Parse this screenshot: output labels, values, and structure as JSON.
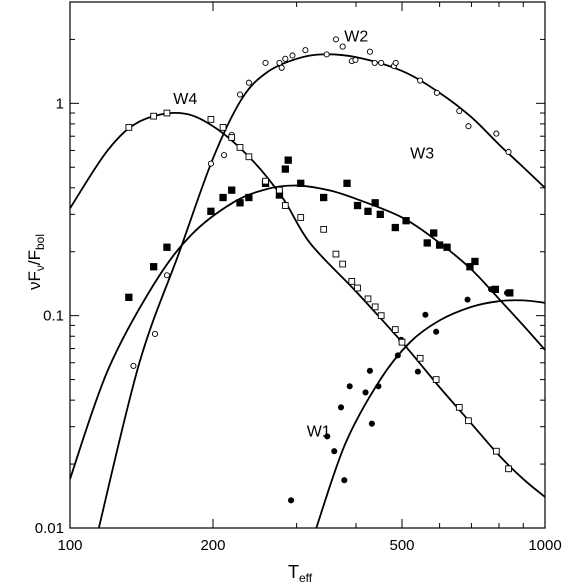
{
  "chart_data": {
    "type": "scatter",
    "title": "",
    "xlabel": {
      "main": "T",
      "sub": "eff"
    },
    "ylabel": {
      "pre": "ν",
      "f1": "F",
      "f1_sub": "ν",
      "slash": "/",
      "f2": "F",
      "f2_sub": "bol"
    },
    "x_scale": "log",
    "y_scale": "log",
    "xlim": [
      100,
      1000
    ],
    "ylim": [
      0.01,
      3
    ],
    "x_ticks": [
      {
        "value": 100,
        "label": "100"
      },
      {
        "value": 200,
        "label": "200"
      },
      {
        "value": 500,
        "label": "500"
      },
      {
        "value": 1000,
        "label": "1000"
      }
    ],
    "y_ticks": [
      {
        "value": 0.01,
        "label": "0.01"
      },
      {
        "value": 0.1,
        "label": "0.1"
      },
      {
        "value": 1,
        "label": "1"
      }
    ],
    "grid": false,
    "legend": "none",
    "series": [
      {
        "name": "W1",
        "label_at": [
          315,
          0.027
        ],
        "marker": "filled-circle",
        "points": [
          [
            292,
            0.0135
          ],
          [
            348,
            0.027
          ],
          [
            360,
            0.023
          ],
          [
            372,
            0.037
          ],
          [
            378,
            0.0168
          ],
          [
            388,
            0.0465
          ],
          [
            419,
            0.0435
          ],
          [
            428,
            0.055
          ],
          [
            432,
            0.031
          ],
          [
            446,
            0.0465
          ],
          [
            490,
            0.065
          ],
          [
            498,
            0.077
          ],
          [
            540,
            0.0545
          ],
          [
            560,
            0.101
          ],
          [
            590,
            0.084
          ],
          [
            687,
            0.119
          ],
          [
            770,
            0.133
          ],
          [
            832,
            0.128
          ]
        ],
        "curve": [
          [
            330,
            0.01
          ],
          [
            380,
            0.025
          ],
          [
            450,
            0.05
          ],
          [
            520,
            0.075
          ],
          [
            600,
            0.095
          ],
          [
            700,
            0.11
          ],
          [
            800,
            0.117
          ],
          [
            900,
            0.118
          ],
          [
            1000,
            0.115
          ]
        ]
      },
      {
        "name": "W2",
        "label_at": [
          378,
          1.95
        ],
        "marker": "open-circle",
        "points": [
          [
            136,
            0.058
          ],
          [
            151,
            0.082
          ],
          [
            160,
            0.155
          ],
          [
            198,
            0.52
          ],
          [
            211,
            0.57
          ],
          [
            219,
            0.71
          ],
          [
            228,
            1.1
          ],
          [
            238,
            1.25
          ],
          [
            258,
            1.55
          ],
          [
            276,
            1.55
          ],
          [
            279,
            1.47
          ],
          [
            284,
            1.62
          ],
          [
            294,
            1.68
          ],
          [
            313,
            1.78
          ],
          [
            347,
            1.7
          ],
          [
            363,
            2.0
          ],
          [
            375,
            1.85
          ],
          [
            392,
            1.58
          ],
          [
            399,
            1.6
          ],
          [
            428,
            1.75
          ],
          [
            438,
            1.55
          ],
          [
            452,
            1.55
          ],
          [
            481,
            1.5
          ],
          [
            485,
            1.55
          ],
          [
            546,
            1.28
          ],
          [
            592,
            1.12
          ],
          [
            660,
            0.92
          ],
          [
            690,
            0.78
          ],
          [
            790,
            0.72
          ],
          [
            838,
            0.59
          ]
        ],
        "curve": [
          [
            115,
            0.01
          ],
          [
            140,
            0.06
          ],
          [
            170,
            0.2
          ],
          [
            200,
            0.55
          ],
          [
            230,
            1.05
          ],
          [
            260,
            1.4
          ],
          [
            300,
            1.62
          ],
          [
            340,
            1.7
          ],
          [
            400,
            1.65
          ],
          [
            500,
            1.42
          ],
          [
            600,
            1.12
          ],
          [
            700,
            0.86
          ],
          [
            800,
            0.64
          ],
          [
            900,
            0.5
          ],
          [
            1000,
            0.4
          ]
        ]
      },
      {
        "name": "W3",
        "label_at": [
          520,
          0.55
        ],
        "marker": "filled-square",
        "points": [
          [
            133,
            0.122
          ],
          [
            150,
            0.17
          ],
          [
            160,
            0.21
          ],
          [
            198,
            0.31
          ],
          [
            210,
            0.36
          ],
          [
            219,
            0.39
          ],
          [
            228,
            0.34
          ],
          [
            238,
            0.36
          ],
          [
            258,
            0.42
          ],
          [
            276,
            0.37
          ],
          [
            284,
            0.49
          ],
          [
            288,
            0.54
          ],
          [
            306,
            0.42
          ],
          [
            342,
            0.36
          ],
          [
            383,
            0.42
          ],
          [
            403,
            0.33
          ],
          [
            424,
            0.31
          ],
          [
            439,
            0.34
          ],
          [
            450,
            0.3
          ],
          [
            484,
            0.26
          ],
          [
            510,
            0.28
          ],
          [
            565,
            0.22
          ],
          [
            583,
            0.245
          ],
          [
            600,
            0.215
          ],
          [
            622,
            0.21
          ],
          [
            695,
            0.17
          ],
          [
            712,
            0.18
          ],
          [
            786,
            0.133
          ],
          [
            843,
            0.128
          ]
        ],
        "curve": [
          [
            100,
            0.017
          ],
          [
            120,
            0.055
          ],
          [
            150,
            0.14
          ],
          [
            180,
            0.24
          ],
          [
            220,
            0.34
          ],
          [
            260,
            0.395
          ],
          [
            300,
            0.41
          ],
          [
            350,
            0.39
          ],
          [
            400,
            0.355
          ],
          [
            500,
            0.29
          ],
          [
            600,
            0.22
          ],
          [
            700,
            0.165
          ],
          [
            800,
            0.12
          ],
          [
            900,
            0.09
          ],
          [
            1000,
            0.069
          ]
        ]
      },
      {
        "name": "W4",
        "label_at": [
          165,
          0.99
        ],
        "marker": "open-square",
        "points": [
          [
            133,
            0.77
          ],
          [
            150,
            0.87
          ],
          [
            160,
            0.9
          ],
          [
            198,
            0.84
          ],
          [
            210,
            0.77
          ],
          [
            219,
            0.69
          ],
          [
            228,
            0.62
          ],
          [
            238,
            0.56
          ],
          [
            258,
            0.43
          ],
          [
            276,
            0.39
          ],
          [
            284,
            0.33
          ],
          [
            306,
            0.29
          ],
          [
            342,
            0.255
          ],
          [
            363,
            0.195
          ],
          [
            375,
            0.175
          ],
          [
            392,
            0.145
          ],
          [
            403,
            0.135
          ],
          [
            424,
            0.12
          ],
          [
            439,
            0.11
          ],
          [
            452,
            0.1
          ],
          [
            484,
            0.086
          ],
          [
            500,
            0.075
          ],
          [
            546,
            0.063
          ],
          [
            590,
            0.05
          ],
          [
            660,
            0.037
          ],
          [
            690,
            0.032
          ],
          [
            790,
            0.023
          ],
          [
            838,
            0.019
          ]
        ],
        "curve": [
          [
            100,
            0.32
          ],
          [
            120,
            0.6
          ],
          [
            140,
            0.82
          ],
          [
            170,
            0.9
          ],
          [
            200,
            0.78
          ],
          [
            240,
            0.55
          ],
          [
            280,
            0.36
          ],
          [
            320,
            0.22
          ],
          [
            400,
            0.13
          ],
          [
            500,
            0.075
          ],
          [
            600,
            0.046
          ],
          [
            700,
            0.031
          ],
          [
            800,
            0.022
          ],
          [
            900,
            0.017
          ],
          [
            1000,
            0.014
          ]
        ]
      }
    ]
  }
}
